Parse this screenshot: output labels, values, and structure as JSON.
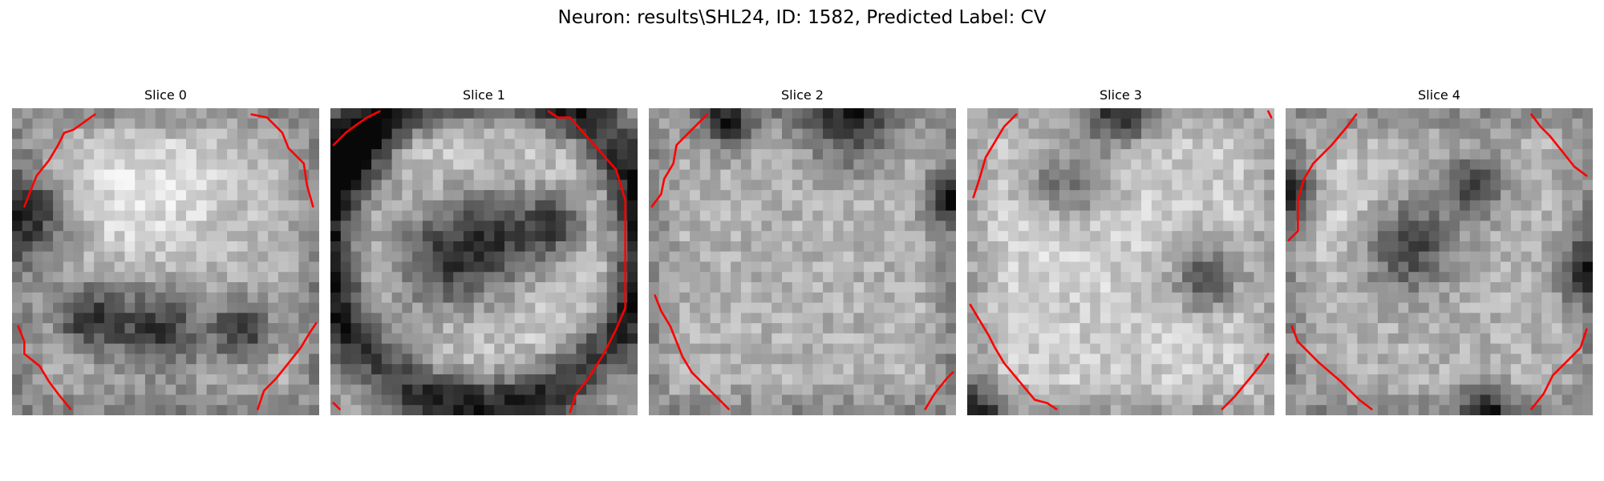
{
  "figure": {
    "title": "Neuron: results\\SHL24, ID: 1582, Predicted Label: CV"
  },
  "colors": {
    "background": "#ffffff",
    "contour": "#ff0000",
    "text": "#000000"
  },
  "image": {
    "colormap": "gray",
    "grid_resolution": 30,
    "contour_color_name": "red"
  },
  "slices": [
    {
      "title": "Slice 0",
      "appearance": {
        "base": 0.68,
        "shade": "bright textured center with darker rim at left and right edges and a dark blob low in the middle",
        "dark_spots": [
          [
            0.48,
            0.72,
            0.1
          ],
          [
            0.08,
            0.35,
            0.1
          ],
          [
            0.25,
            0.68,
            0.08
          ],
          [
            0.75,
            0.72,
            0.07
          ]
        ],
        "bright_spots": [
          [
            0.55,
            0.25,
            0.18
          ],
          [
            0.3,
            0.3,
            0.15
          ]
        ]
      },
      "contours": [
        [
          [
            0.27,
            0.02
          ],
          [
            0.2,
            0.07
          ],
          [
            0.17,
            0.08
          ],
          [
            0.15,
            0.12
          ],
          [
            0.12,
            0.17
          ],
          [
            0.08,
            0.22
          ],
          [
            0.06,
            0.27
          ],
          [
            0.04,
            0.32
          ]
        ],
        [
          [
            0.78,
            0.02
          ],
          [
            0.83,
            0.03
          ],
          [
            0.88,
            0.08
          ],
          [
            0.9,
            0.13
          ],
          [
            0.95,
            0.18
          ],
          [
            0.96,
            0.25
          ],
          [
            0.98,
            0.32
          ]
        ],
        [
          [
            0.02,
            0.71
          ],
          [
            0.04,
            0.76
          ],
          [
            0.04,
            0.8
          ],
          [
            0.09,
            0.84
          ],
          [
            0.12,
            0.89
          ],
          [
            0.15,
            0.93
          ],
          [
            0.19,
            0.98
          ]
        ],
        [
          [
            0.8,
            0.98
          ],
          [
            0.82,
            0.92
          ],
          [
            0.86,
            0.88
          ],
          [
            0.9,
            0.83
          ],
          [
            0.94,
            0.78
          ],
          [
            0.97,
            0.73
          ],
          [
            0.99,
            0.7
          ]
        ]
      ]
    },
    {
      "title": "Slice 1",
      "appearance": {
        "base": 0.8,
        "shade": "bright round cell with thick dark membrane ring near the bottom and a grey inner blob",
        "dark_spots": [
          [
            0.35,
            0.5,
            0.13
          ],
          [
            0.55,
            0.42,
            0.12
          ],
          [
            0.73,
            0.38,
            0.07
          ],
          [
            0.05,
            0.15,
            0.1
          ]
        ],
        "ring": {
          "center": [
            0.5,
            0.44
          ],
          "radius": 0.52,
          "width": 0.07
        }
      },
      "contours": [
        [
          [
            0.01,
            0.12
          ],
          [
            0.05,
            0.08
          ],
          [
            0.09,
            0.05
          ],
          [
            0.12,
            0.03
          ],
          [
            0.16,
            0.01
          ]
        ],
        [
          [
            0.71,
            0.01
          ],
          [
            0.74,
            0.03
          ],
          [
            0.78,
            0.03
          ],
          [
            0.93,
            0.2
          ],
          [
            0.96,
            0.3
          ],
          [
            0.96,
            0.65
          ],
          [
            0.93,
            0.72
          ],
          [
            0.89,
            0.8
          ],
          [
            0.84,
            0.88
          ],
          [
            0.8,
            0.93
          ],
          [
            0.78,
            0.99
          ]
        ],
        [
          [
            0.01,
            0.96
          ],
          [
            0.03,
            0.98
          ]
        ]
      ]
    },
    {
      "title": "Slice 2",
      "appearance": {
        "base": 0.7,
        "shade": "uniform noisy grey interior with darker rim along the top and right edges",
        "dark_spots": [
          [
            0.65,
            0.05,
            0.1
          ],
          [
            0.98,
            0.3,
            0.06
          ],
          [
            0.25,
            0.05,
            0.06
          ]
        ]
      },
      "contours": [
        [
          [
            0.19,
            0.02
          ],
          [
            0.13,
            0.08
          ],
          [
            0.09,
            0.12
          ],
          [
            0.08,
            0.18
          ],
          [
            0.05,
            0.23
          ],
          [
            0.04,
            0.28
          ],
          [
            0.01,
            0.32
          ]
        ],
        [
          [
            0.02,
            0.61
          ],
          [
            0.04,
            0.66
          ],
          [
            0.07,
            0.71
          ],
          [
            0.09,
            0.76
          ],
          [
            0.11,
            0.81
          ],
          [
            0.14,
            0.86
          ],
          [
            0.26,
            0.98
          ]
        ],
        [
          [
            0.9,
            0.98
          ],
          [
            0.93,
            0.93
          ],
          [
            0.97,
            0.88
          ],
          [
            0.99,
            0.86
          ]
        ]
      ]
    },
    {
      "title": "Slice 3",
      "appearance": {
        "base": 0.8,
        "shade": "bright cell with dark band along the top and a very dark corner bottom-left",
        "dark_spots": [
          [
            0.32,
            0.26,
            0.1
          ],
          [
            0.78,
            0.55,
            0.08
          ],
          [
            0.04,
            0.98,
            0.07
          ],
          [
            0.5,
            0.02,
            0.08
          ]
        ],
        "bright_spots": [
          [
            0.3,
            0.35,
            0.12
          ]
        ]
      },
      "contours": [
        [
          [
            0.16,
            0.02
          ],
          [
            0.12,
            0.06
          ],
          [
            0.09,
            0.11
          ],
          [
            0.06,
            0.16
          ],
          [
            0.04,
            0.23
          ],
          [
            0.02,
            0.29
          ]
        ],
        [
          [
            0.98,
            0.01
          ],
          [
            0.99,
            0.03
          ]
        ],
        [
          [
            0.01,
            0.64
          ],
          [
            0.04,
            0.69
          ],
          [
            0.07,
            0.74
          ],
          [
            0.09,
            0.78
          ],
          [
            0.12,
            0.83
          ],
          [
            0.22,
            0.95
          ],
          [
            0.26,
            0.96
          ],
          [
            0.29,
            0.98
          ]
        ],
        [
          [
            0.83,
            0.98
          ],
          [
            0.87,
            0.94
          ],
          [
            0.92,
            0.88
          ],
          [
            0.96,
            0.83
          ],
          [
            0.98,
            0.8
          ]
        ]
      ]
    },
    {
      "title": "Slice 4",
      "appearance": {
        "base": 0.7,
        "shade": "grey textured cell with dark rim on the left and right edges",
        "dark_spots": [
          [
            0.02,
            0.27,
            0.07
          ],
          [
            0.61,
            0.25,
            0.07
          ],
          [
            0.98,
            0.53,
            0.07
          ],
          [
            0.4,
            0.45,
            0.1
          ],
          [
            0.65,
            0.98,
            0.06
          ]
        ],
        "bright_spots": [
          [
            0.15,
            0.32,
            0.12
          ]
        ]
      },
      "contours": [
        [
          [
            0.23,
            0.02
          ],
          [
            0.2,
            0.06
          ],
          [
            0.15,
            0.12
          ],
          [
            0.09,
            0.18
          ],
          [
            0.06,
            0.23
          ],
          [
            0.04,
            0.3
          ],
          [
            0.04,
            0.4
          ],
          [
            0.01,
            0.43
          ]
        ],
        [
          [
            0.8,
            0.02
          ],
          [
            0.83,
            0.06
          ],
          [
            0.86,
            0.09
          ],
          [
            0.9,
            0.14
          ],
          [
            0.94,
            0.19
          ],
          [
            0.98,
            0.22
          ]
        ],
        [
          [
            0.02,
            0.71
          ],
          [
            0.04,
            0.76
          ],
          [
            0.11,
            0.83
          ],
          [
            0.18,
            0.89
          ],
          [
            0.24,
            0.95
          ],
          [
            0.28,
            0.98
          ]
        ],
        [
          [
            0.8,
            0.98
          ],
          [
            0.84,
            0.93
          ],
          [
            0.87,
            0.87
          ],
          [
            0.92,
            0.82
          ],
          [
            0.96,
            0.78
          ],
          [
            0.98,
            0.72
          ]
        ]
      ]
    }
  ]
}
